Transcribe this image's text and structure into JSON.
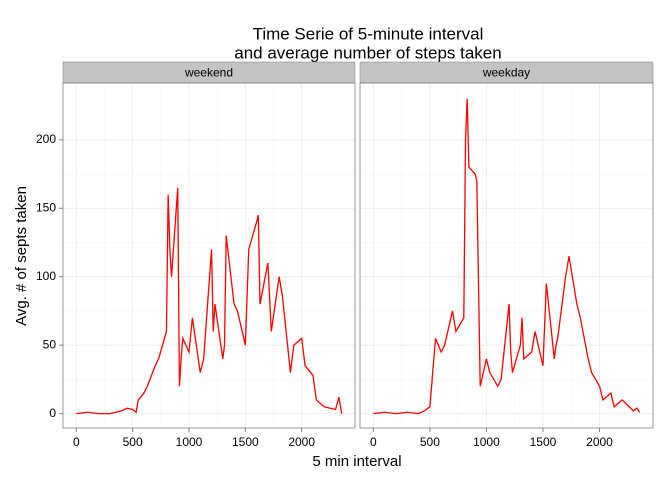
{
  "title": [
    "Time Serie of 5-minute interval",
    "and average number of steps taken"
  ],
  "x_label": "5 min interval",
  "y_label": "Avg. # of septs taken",
  "chart_data": [
    {
      "type": "line",
      "panel_label": "weekend",
      "x": [
        0,
        100,
        200,
        300,
        400,
        450,
        500,
        530,
        550,
        600,
        630,
        700,
        730,
        800,
        815,
        830,
        845,
        900,
        915,
        930,
        945,
        1000,
        1030,
        1100,
        1130,
        1200,
        1215,
        1230,
        1300,
        1315,
        1330,
        1400,
        1430,
        1500,
        1530,
        1600,
        1615,
        1630,
        1700,
        1730,
        1800,
        1830,
        1900,
        1930,
        2000,
        2030,
        2100,
        2130,
        2200,
        2300,
        2330,
        2355
      ],
      "series": [
        {
          "color": "#ff0000",
          "values": [
            0,
            1,
            0,
            0,
            2,
            4,
            3,
            1,
            10,
            15,
            20,
            35,
            40,
            60,
            160,
            120,
            100,
            165,
            20,
            40,
            55,
            45,
            70,
            30,
            40,
            120,
            60,
            80,
            40,
            50,
            130,
            80,
            75,
            50,
            120,
            140,
            145,
            80,
            110,
            60,
            100,
            85,
            30,
            50,
            55,
            35,
            28,
            10,
            5,
            3,
            12,
            0
          ]
        }
      ],
      "xlim": [
        -118,
        2473
      ],
      "ylim": [
        -10.5,
        241.5
      ],
      "xticks": [
        0,
        500,
        1000,
        1500,
        2000
      ],
      "yticks": [
        0,
        50,
        100,
        150,
        200
      ],
      "grid": true
    },
    {
      "type": "line",
      "panel_label": "weekday",
      "x": [
        0,
        100,
        200,
        300,
        400,
        450,
        500,
        530,
        550,
        600,
        630,
        700,
        730,
        800,
        815,
        830,
        845,
        900,
        915,
        930,
        945,
        1000,
        1030,
        1100,
        1130,
        1200,
        1215,
        1230,
        1300,
        1315,
        1330,
        1400,
        1430,
        1500,
        1530,
        1600,
        1615,
        1630,
        1700,
        1730,
        1800,
        1830,
        1900,
        1930,
        2000,
        2030,
        2100,
        2130,
        2200,
        2300,
        2330,
        2355
      ],
      "series": [
        {
          "color": "#ff0000",
          "values": [
            0,
            1,
            0,
            1,
            0,
            2,
            5,
            35,
            55,
            45,
            50,
            75,
            60,
            70,
            200,
            230,
            180,
            175,
            170,
            95,
            20,
            40,
            30,
            20,
            25,
            80,
            45,
            30,
            50,
            70,
            40,
            45,
            60,
            35,
            95,
            40,
            50,
            55,
            100,
            115,
            80,
            70,
            40,
            30,
            20,
            10,
            15,
            5,
            10,
            2,
            4,
            1
          ]
        }
      ],
      "xlim": [
        -118,
        2473
      ],
      "ylim": [
        -10.5,
        241.5
      ],
      "xticks": [
        0,
        500,
        1000,
        1500,
        2000
      ],
      "yticks": [
        0,
        50,
        100,
        150,
        200
      ],
      "grid": true
    }
  ]
}
